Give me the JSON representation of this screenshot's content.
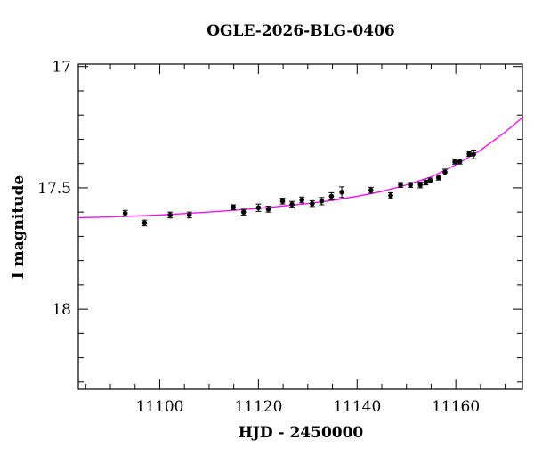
{
  "chart_data": {
    "type": "scatter",
    "title": "OGLE-2026-BLG-0406",
    "xlabel": "HJD - 2450000",
    "ylabel": "I magnitude",
    "xlim": [
      11083.5,
      11173.5
    ],
    "ylim": [
      18.33,
      16.99
    ],
    "y_inverted": true,
    "grid": false,
    "x_major_ticks": [
      11100,
      11120,
      11140,
      11160
    ],
    "x_minor_step": 5,
    "y_major_ticks": [
      17,
      17.5,
      18
    ],
    "y_minor_step": 0.1,
    "x_tick_labels": [
      "11100",
      "11120",
      "11140",
      "11160"
    ],
    "y_tick_labels": [
      "17",
      "17.5",
      "18"
    ],
    "series": [
      {
        "kind": "points",
        "color": "#000000",
        "points": [
          {
            "x": 11093.0,
            "y": 17.605,
            "err": 0.012
          },
          {
            "x": 11096.9,
            "y": 17.645,
            "err": 0.012
          },
          {
            "x": 11102.1,
            "y": 17.612,
            "err": 0.012
          },
          {
            "x": 11106.0,
            "y": 17.612,
            "err": 0.012
          },
          {
            "x": 11114.9,
            "y": 17.58,
            "err": 0.01
          },
          {
            "x": 11117.0,
            "y": 17.6,
            "err": 0.012
          },
          {
            "x": 11120.0,
            "y": 17.582,
            "err": 0.015
          },
          {
            "x": 11122.0,
            "y": 17.588,
            "err": 0.012
          },
          {
            "x": 11124.9,
            "y": 17.555,
            "err": 0.012
          },
          {
            "x": 11126.8,
            "y": 17.568,
            "err": 0.012
          },
          {
            "x": 11128.8,
            "y": 17.55,
            "err": 0.012
          },
          {
            "x": 11130.9,
            "y": 17.565,
            "err": 0.012
          },
          {
            "x": 11132.8,
            "y": 17.555,
            "err": 0.015
          },
          {
            "x": 11134.8,
            "y": 17.535,
            "err": 0.015
          },
          {
            "x": 11136.9,
            "y": 17.518,
            "err": 0.022
          },
          {
            "x": 11142.8,
            "y": 17.51,
            "err": 0.012
          },
          {
            "x": 11146.8,
            "y": 17.532,
            "err": 0.012
          },
          {
            "x": 11148.8,
            "y": 17.488,
            "err": 0.01
          },
          {
            "x": 11150.8,
            "y": 17.488,
            "err": 0.01
          },
          {
            "x": 11152.8,
            "y": 17.488,
            "err": 0.012
          },
          {
            "x": 11153.9,
            "y": 17.478,
            "err": 0.01
          },
          {
            "x": 11154.8,
            "y": 17.47,
            "err": 0.01
          },
          {
            "x": 11156.5,
            "y": 17.458,
            "err": 0.01
          },
          {
            "x": 11157.8,
            "y": 17.435,
            "err": 0.012
          },
          {
            "x": 11159.8,
            "y": 17.392,
            "err": 0.01
          },
          {
            "x": 11160.8,
            "y": 17.392,
            "err": 0.01
          },
          {
            "x": 11162.7,
            "y": 17.36,
            "err": 0.01
          },
          {
            "x": 11163.6,
            "y": 17.362,
            "err": 0.018
          }
        ]
      },
      {
        "kind": "model-curve",
        "color": "#ff00ff",
        "x": [
          11083.5,
          11090,
          11100,
          11110,
          11120,
          11130,
          11135,
          11140,
          11145,
          11150,
          11155,
          11160,
          11165,
          11170,
          11173.5
        ],
        "y": [
          17.623,
          17.62,
          17.612,
          17.6,
          17.585,
          17.565,
          17.552,
          17.535,
          17.515,
          17.488,
          17.455,
          17.405,
          17.345,
          17.27,
          17.21
        ]
      }
    ]
  }
}
